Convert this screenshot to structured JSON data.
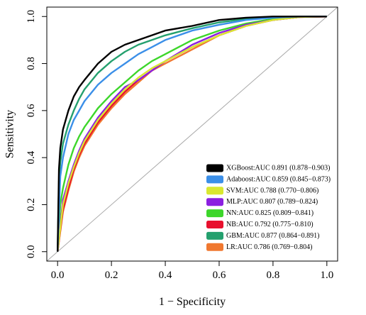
{
  "chart_data": {
    "type": "line",
    "title": "",
    "xlabel": "1 − Specificity",
    "ylabel": "Sensitivity",
    "xlim": [
      -0.04,
      1.04
    ],
    "ylim": [
      -0.04,
      1.04
    ],
    "xticks": [
      "0.0",
      "0.2",
      "0.4",
      "0.6",
      "0.8",
      "1.0"
    ],
    "yticks": [
      "0.0",
      "0.2",
      "0.4",
      "0.6",
      "0.8",
      "1.0"
    ],
    "legend_position": "bottom-right",
    "reference_line": {
      "x": [
        -0.04,
        1.04
      ],
      "y": [
        -0.04,
        1.04
      ],
      "color": "#aaaaaa"
    },
    "series": [
      {
        "name": "XGBoost:AUC 0.891 (0.878−0.903)",
        "color": "#000000",
        "x": [
          0,
          0.005,
          0.01,
          0.02,
          0.04,
          0.06,
          0.08,
          0.1,
          0.15,
          0.2,
          0.25,
          0.3,
          0.35,
          0.4,
          0.5,
          0.6,
          0.7,
          0.8,
          0.9,
          1.0
        ],
        "y": [
          0,
          0.35,
          0.44,
          0.52,
          0.6,
          0.66,
          0.7,
          0.73,
          0.8,
          0.85,
          0.88,
          0.9,
          0.92,
          0.94,
          0.96,
          0.985,
          0.995,
          1.0,
          1.0,
          1.0
        ]
      },
      {
        "name": "Adaboost:AUC 0.859 (0.845−0.873)",
        "color": "#3b8fe8",
        "x": [
          0,
          0.01,
          0.02,
          0.04,
          0.06,
          0.08,
          0.1,
          0.15,
          0.2,
          0.25,
          0.3,
          0.35,
          0.4,
          0.5,
          0.6,
          0.7,
          0.8,
          0.9,
          1.0
        ],
        "y": [
          0,
          0.32,
          0.4,
          0.5,
          0.56,
          0.6,
          0.64,
          0.71,
          0.76,
          0.8,
          0.84,
          0.87,
          0.9,
          0.94,
          0.965,
          0.985,
          0.995,
          1.0,
          1.0
        ]
      },
      {
        "name": "SVM:AUC 0.788 (0.770−0.806)",
        "color": "#d9e830",
        "x": [
          0,
          0.02,
          0.04,
          0.06,
          0.08,
          0.1,
          0.15,
          0.2,
          0.25,
          0.3,
          0.35,
          0.4,
          0.5,
          0.6,
          0.7,
          0.8,
          0.9,
          1.0
        ],
        "y": [
          0,
          0.2,
          0.29,
          0.36,
          0.42,
          0.47,
          0.56,
          0.63,
          0.69,
          0.74,
          0.78,
          0.81,
          0.87,
          0.92,
          0.96,
          0.985,
          0.998,
          1.0
        ]
      },
      {
        "name": "MLP:AUC 0.807 (0.789−0.824)",
        "color": "#8b20e0",
        "x": [
          0,
          0.02,
          0.04,
          0.06,
          0.08,
          0.1,
          0.15,
          0.2,
          0.25,
          0.3,
          0.35,
          0.4,
          0.5,
          0.6,
          0.7,
          0.8,
          0.9,
          1.0
        ],
        "y": [
          0,
          0.22,
          0.3,
          0.37,
          0.43,
          0.48,
          0.57,
          0.64,
          0.7,
          0.73,
          0.77,
          0.81,
          0.88,
          0.93,
          0.965,
          0.985,
          0.998,
          1.0
        ]
      },
      {
        "name": "NN:AUC 0.825 (0.809−0.841)",
        "color": "#3dd62b",
        "x": [
          0,
          0.01,
          0.02,
          0.04,
          0.06,
          0.08,
          0.1,
          0.15,
          0.2,
          0.25,
          0.3,
          0.35,
          0.4,
          0.5,
          0.6,
          0.7,
          0.8,
          0.9,
          1.0
        ],
        "y": [
          0,
          0.2,
          0.27,
          0.37,
          0.44,
          0.49,
          0.53,
          0.61,
          0.67,
          0.72,
          0.77,
          0.81,
          0.84,
          0.9,
          0.94,
          0.97,
          0.99,
          1.0,
          1.0
        ]
      },
      {
        "name": "NB:AUC 0.792 (0.775−0.810)",
        "color": "#e8102e",
        "x": [
          0,
          0.02,
          0.04,
          0.06,
          0.08,
          0.1,
          0.15,
          0.2,
          0.25,
          0.3,
          0.35,
          0.4,
          0.5,
          0.6,
          0.7,
          0.8,
          0.9,
          1.0
        ],
        "y": [
          0,
          0.18,
          0.27,
          0.35,
          0.41,
          0.46,
          0.55,
          0.62,
          0.68,
          0.73,
          0.77,
          0.81,
          0.87,
          0.92,
          0.96,
          0.985,
          0.998,
          1.0
        ]
      },
      {
        "name": "GBM:AUC 0.877 (0.864−0.891)",
        "color": "#24a06e",
        "x": [
          0,
          0.005,
          0.01,
          0.02,
          0.04,
          0.06,
          0.08,
          0.1,
          0.15,
          0.2,
          0.25,
          0.3,
          0.35,
          0.4,
          0.5,
          0.6,
          0.7,
          0.8,
          0.9,
          1.0
        ],
        "y": [
          0,
          0.3,
          0.38,
          0.46,
          0.54,
          0.6,
          0.65,
          0.69,
          0.76,
          0.81,
          0.85,
          0.88,
          0.9,
          0.92,
          0.95,
          0.975,
          0.99,
          0.998,
          1.0,
          1.0
        ]
      },
      {
        "name": "LR:AUC 0.786 (0.769−0.804)",
        "color": "#f07830",
        "x": [
          0,
          0.02,
          0.04,
          0.06,
          0.08,
          0.1,
          0.15,
          0.2,
          0.25,
          0.3,
          0.35,
          0.4,
          0.5,
          0.6,
          0.7,
          0.8,
          0.9,
          1.0
        ],
        "y": [
          0,
          0.17,
          0.26,
          0.34,
          0.4,
          0.45,
          0.54,
          0.61,
          0.67,
          0.72,
          0.77,
          0.8,
          0.86,
          0.92,
          0.96,
          0.985,
          0.998,
          1.0
        ]
      }
    ]
  }
}
